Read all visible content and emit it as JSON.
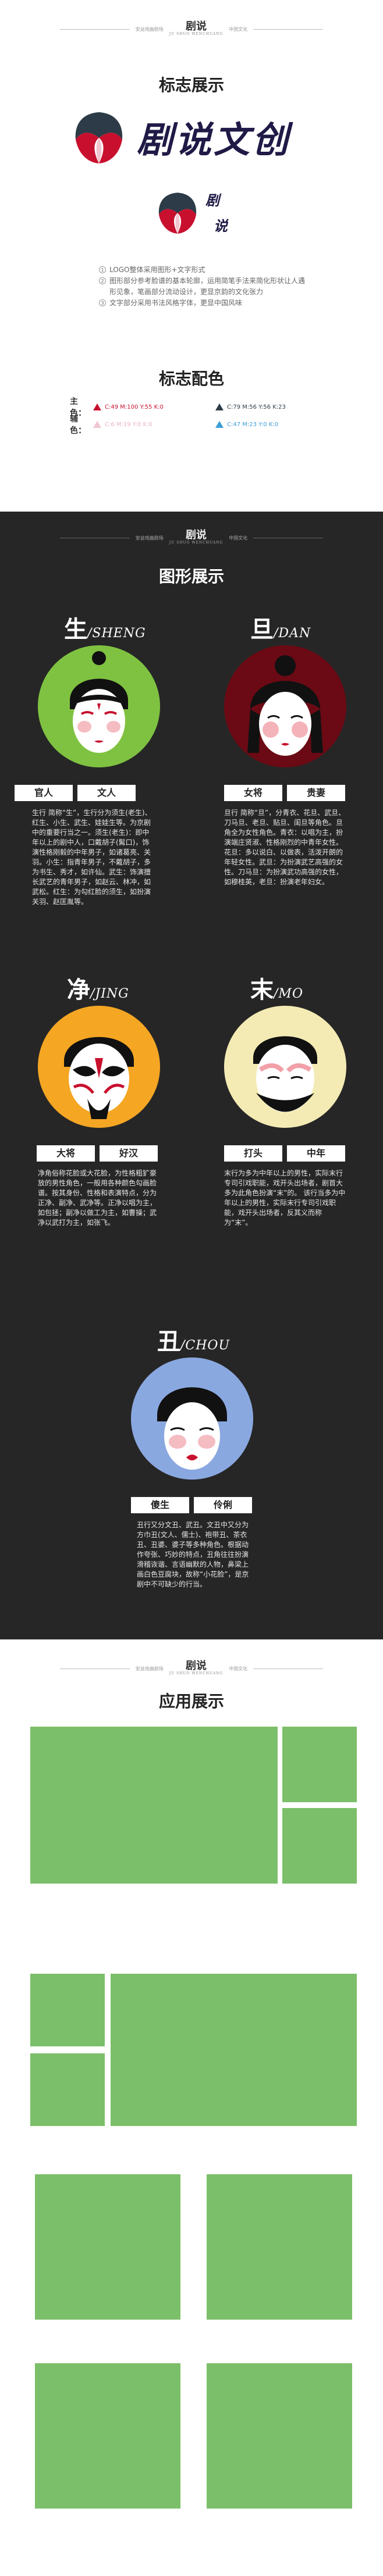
{
  "header": {
    "left_text": "安益戏曲剧场",
    "right_text": "中国文化",
    "mini_logo": "剧说",
    "mini_logo_sub": "JU SHUO WENCHUANG"
  },
  "logo_section": {
    "title": "标志展示",
    "brand_name": "剧说文创",
    "small_chars": [
      "剧",
      "说"
    ],
    "notes": [
      {
        "num": "1",
        "text": "LOGO整体采用图形+文字形式"
      },
      {
        "num": "2",
        "text": "图形部分参考脸谱的基本轮廓，运用简笔手法来简化形状让人遇形见象，笔画部分流动设计，更显京韵的文化张力"
      },
      {
        "num": "3",
        "text": "文字部分采用书法风格字体，更显中国风味"
      }
    ],
    "colors_title": "标志配色",
    "main_label": "主色：",
    "aux_label": "辅色：",
    "main_colors": [
      {
        "text": "C:49 M:100 Y:55 K:0",
        "hex": "#c8102e"
      },
      {
        "text": "C:79 M:56 Y:56 K:23",
        "hex": "#2c3b47"
      }
    ],
    "aux_colors": [
      {
        "text": "C:6 M:19 Y:0 K:0",
        "hex": "#f1c5cf"
      },
      {
        "text": "C:47 M:23 Y:0 K:0",
        "hex": "#3a9fd6"
      }
    ]
  },
  "chars_section": {
    "title": "图形展示",
    "characters": [
      {
        "name": "生",
        "pinyin": "/SHENG",
        "color": "#7fc241",
        "tags": [
          "官人",
          "文人"
        ],
        "desc": "生行 简称“生”，生行分为须生(老生)、红生、小生、武生、娃娃生等。为京剧中的重要行当之一。须生(老生)：即中年以上的剧中人，口戴胡子(髯口)，饰演性格刚毅的中年男子，如诸葛亮、关羽。小生：指青年男子，不戴胡子，多为书生、秀才，如许仙。武生：饰演擅长武艺的青年男子，如赵云、林冲，如武松。红生：为勾红脸的须生，如扮演关羽、赵匡胤等。"
      },
      {
        "name": "旦",
        "pinyin": "/DAN",
        "color": "#6b0a14",
        "tags": [
          "女将",
          "贵妻"
        ],
        "desc": "旦行 简称“旦”，分青衣、花旦、武旦、刀马旦、老旦、贴旦、闺旦等角色。旦角全为女性角色。青衣：以唱为主，扮演端庄贤淑、性格刚烈的中青年女性。花旦：多以说白、以做表，活泼开朗的年轻女性。武旦：为扮演武艺高强的女性。刀马旦：为扮演武功高强的女性，如穆桂英，老旦：扮演老年妇女。"
      },
      {
        "name": "净",
        "pinyin": "/JING",
        "color": "#f5a623",
        "tags": [
          "大将",
          "好汉"
        ],
        "desc": "净角俗称花脸或大花脸，为性格粗犷豪放的男性角色，一般用各种颜色勾画脸谱。按其身份、性格和表演特点，分为正净、副净、武净等。正净以唱为主，如包拯；副净以做工为主，如曹操；武净以武打为主，如张飞。"
      },
      {
        "name": "末",
        "pinyin": "/MO",
        "color": "#f4ebb4",
        "tags": [
          "打头",
          "中年"
        ],
        "desc": "末行为多为中年以上的男性，实际末行专司引戏职能，戏开头出场者，剧首大多为此角色扮演“末”的。 该行当多为中年以上的男性，实际末行专司引戏职能，戏开头出场者，反其义而称为“末”。"
      },
      {
        "name": "丑",
        "pinyin": "/CHOU",
        "color": "#8aa8e0",
        "tags": [
          "傻生",
          "伶俐"
        ],
        "desc": "丑行又分文丑、武丑。文丑中又分为方巾丑(文人、儒士)、袍带丑、茶衣丑、丑婆、婆子等多种角色。根据动作夸张、巧妙的特点，丑角往往扮演滑稽诙谐、言语幽默的人物，鼻梁上画白色豆腐块，故称“小花脸”，是京剧中不可缺少的行当。"
      }
    ]
  },
  "app_section": {
    "title": "应用展示",
    "box_color": "#7cbf6a"
  },
  "main_colors_hex": [
    "#c8102e",
    "#2c3b47"
  ]
}
